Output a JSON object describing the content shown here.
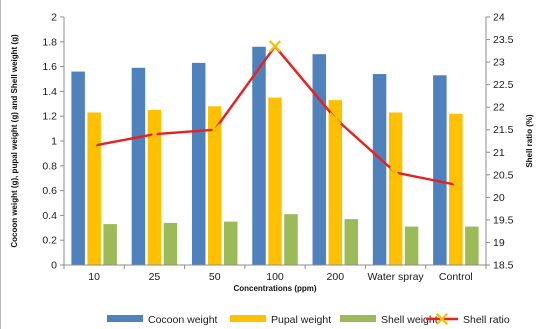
{
  "chart_data": {
    "type": "bar",
    "categories": [
      "10",
      "25",
      "50",
      "100",
      "200",
      "Water spray",
      "Control"
    ],
    "xlabel": "Concentrations (ppm)",
    "ylabel": "Cocoon weight (g), pupal weight (g) and Shell weight (g)",
    "y2label": "Shell ratio (%)",
    "ylim": [
      0,
      2
    ],
    "yticks": [
      "0",
      "0.2",
      "0.4",
      "0.6",
      "0.8",
      "1",
      "1.2",
      "1.4",
      "1.6",
      "1.8",
      "2"
    ],
    "y2lim": [
      18.5,
      24
    ],
    "y2ticks": [
      "18.5",
      "19",
      "19.5",
      "20",
      "20.5",
      "21",
      "21.5",
      "22",
      "22.5",
      "23",
      "23.5",
      "24"
    ],
    "grid": false,
    "legend_position": "bottom",
    "series": [
      {
        "name": "Cocoon weight",
        "type": "bar",
        "axis": "left",
        "color": "#4f81bd",
        "values": [
          1.56,
          1.59,
          1.63,
          1.76,
          1.7,
          1.54,
          1.53
        ]
      },
      {
        "name": "Pupal weight",
        "type": "bar",
        "axis": "left",
        "color": "#ffc000",
        "values": [
          1.23,
          1.25,
          1.28,
          1.35,
          1.33,
          1.23,
          1.22
        ]
      },
      {
        "name": "Shell weight",
        "type": "bar",
        "axis": "left",
        "color": "#9bbb59",
        "values": [
          0.33,
          0.34,
          0.35,
          0.41,
          0.37,
          0.31,
          0.31
        ]
      },
      {
        "name": "Shell ratio",
        "type": "line",
        "axis": "right",
        "color": "#e8201f",
        "marker_color": "#f2c200",
        "marker": "x-icon",
        "values": [
          21.15,
          21.4,
          21.5,
          23.35,
          21.75,
          20.55,
          20.28
        ]
      }
    ]
  }
}
